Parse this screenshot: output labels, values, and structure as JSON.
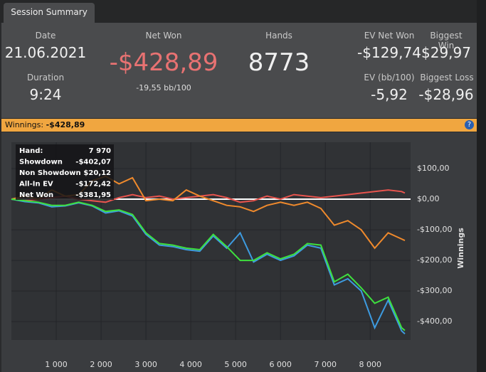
{
  "tab": {
    "label": "Session Summary"
  },
  "summary": {
    "date": {
      "label": "Date",
      "value": "21.06.2021"
    },
    "duration": {
      "label": "Duration",
      "value": "9:24"
    },
    "net_won": {
      "label": "Net Won",
      "value": "-$428,89",
      "sub": "-19,55 bb/100"
    },
    "hands": {
      "label": "Hands",
      "value": "8773"
    },
    "ev_net_won": {
      "label": "EV Net Won",
      "value": "-$129,74"
    },
    "biggest_win": {
      "label": "Biggest Win",
      "value": "$29,97"
    },
    "ev_bb": {
      "label": "EV (bb/100)",
      "value": "-5,92"
    },
    "biggest_loss": {
      "label": "Biggest Loss",
      "value": "-$28,96"
    }
  },
  "banner": {
    "label": "Winnings:",
    "value": "-$428,89"
  },
  "tooltip": {
    "rows": [
      [
        "Hand:",
        "7 970"
      ],
      [
        "Showdown",
        "-$402,07"
      ],
      [
        "Non Showdown",
        "$20,12"
      ],
      [
        "All-In EV",
        "-$172,42"
      ],
      [
        "Net Won",
        "-$381,95"
      ]
    ]
  },
  "chart_data": {
    "type": "line",
    "y_label": "Winnings",
    "x": [
      0,
      300,
      600,
      900,
      1200,
      1500,
      1800,
      2100,
      2400,
      2700,
      3000,
      3300,
      3600,
      3900,
      4200,
      4500,
      4800,
      5100,
      5400,
      5700,
      6000,
      6300,
      6600,
      6900,
      7200,
      7500,
      7800,
      8100,
      8400,
      8700,
      8773
    ],
    "series": [
      {
        "color": "#e8544e",
        "values": [
          0,
          -5,
          0,
          5,
          10,
          0,
          -5,
          -10,
          5,
          15,
          5,
          10,
          0,
          5,
          10,
          15,
          5,
          -10,
          -5,
          10,
          0,
          15,
          10,
          5,
          10,
          15,
          20,
          25,
          30,
          25,
          20
        ]
      },
      {
        "color": "#f08a2c",
        "values": [
          0,
          10,
          0,
          30,
          10,
          15,
          60,
          75,
          50,
          70,
          -5,
          0,
          -5,
          30,
          10,
          -5,
          -20,
          -25,
          -40,
          -20,
          -10,
          -20,
          -10,
          -30,
          -85,
          -70,
          -100,
          -160,
          -110,
          -130,
          -135
        ]
      },
      {
        "color": "#3d9be0",
        "values": [
          0,
          -8,
          -12,
          -25,
          -22,
          -12,
          -22,
          -45,
          -38,
          -55,
          -115,
          -150,
          -155,
          -165,
          -170,
          -120,
          -160,
          -110,
          -205,
          -180,
          -200,
          -185,
          -150,
          -160,
          -280,
          -260,
          -300,
          -420,
          -330,
          -430,
          -440
        ]
      },
      {
        "color": "#3ee03e",
        "values": [
          0,
          -5,
          -10,
          -20,
          -20,
          -10,
          -20,
          -40,
          -35,
          -50,
          -110,
          -145,
          -150,
          -160,
          -165,
          -115,
          -155,
          -200,
          -200,
          -175,
          -195,
          -180,
          -145,
          -150,
          -270,
          -245,
          -290,
          -340,
          -320,
          -420,
          -429
        ]
      }
    ],
    "xlim": [
      0,
      8900
    ],
    "ylim": [
      -460,
      186
    ],
    "xticks": [
      {
        "value": 1000,
        "label": "1 000"
      },
      {
        "value": 2000,
        "label": "2 000"
      },
      {
        "value": 3000,
        "label": "3 000"
      },
      {
        "value": 4000,
        "label": "4 000"
      },
      {
        "value": 5000,
        "label": "5 000"
      },
      {
        "value": 6000,
        "label": "6 000"
      },
      {
        "value": 7000,
        "label": "7 000"
      },
      {
        "value": 8000,
        "label": "8 000"
      }
    ],
    "yticks": [
      {
        "value": 100,
        "label": "$100,00"
      },
      {
        "value": 0,
        "label": "$0,00"
      },
      {
        "value": -100,
        "label": "-$100,00"
      },
      {
        "value": -200,
        "label": "-$200,00"
      },
      {
        "value": -300,
        "label": "-$300,00"
      },
      {
        "value": -400,
        "label": "-$400,00"
      }
    ],
    "grid": true
  }
}
